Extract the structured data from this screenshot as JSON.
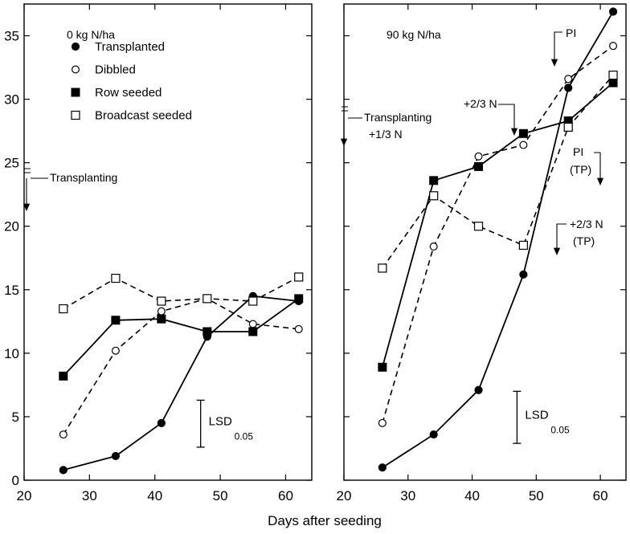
{
  "chart_data": {
    "type": "line",
    "xlabel": "Days after seeding",
    "x_ticks": [
      20,
      30,
      40,
      50,
      60
    ],
    "y_ticks": [
      0,
      5,
      10,
      15,
      20,
      25,
      30,
      35
    ],
    "xlim": [
      20,
      64
    ],
    "ylim": [
      0,
      37.5
    ],
    "legend": {
      "placement": "top-left of left panel",
      "entries": [
        {
          "name": "Transplanted",
          "marker": "filled-circle",
          "line": "solid"
        },
        {
          "name": "Dibbled",
          "marker": "open-circle",
          "line": "dashed"
        },
        {
          "name": "Row seeded",
          "marker": "filled-square",
          "line": "solid"
        },
        {
          "name": "Broadcast seeded",
          "marker": "open-square",
          "line": "dashed"
        }
      ]
    },
    "panels": [
      {
        "title": "0 kg N/ha",
        "series": [
          {
            "name": "Transplanted",
            "x": [
              26,
              34,
              41,
              48,
              55,
              62
            ],
            "y": [
              0.8,
              1.9,
              4.5,
              11.3,
              14.5,
              14.1
            ]
          },
          {
            "name": "Dibbled",
            "x": [
              26,
              34,
              41,
              48,
              55,
              62
            ],
            "y": [
              3.6,
              10.2,
              13.3,
              14.3,
              12.3,
              11.9
            ]
          },
          {
            "name": "Row seeded",
            "x": [
              26,
              34,
              41,
              48,
              55,
              62
            ],
            "y": [
              8.2,
              12.6,
              12.7,
              11.7,
              11.7,
              14.3
            ]
          },
          {
            "name": "Broadcast seeded",
            "x": [
              26,
              34,
              41,
              48,
              55,
              62
            ],
            "y": [
              13.5,
              15.9,
              14.1,
              14.3,
              14.1,
              16.0
            ]
          }
        ],
        "lsd": {
          "label": "LSD",
          "subscript": "0.05",
          "x": 47,
          "y_low": 2.6,
          "y_high": 6.3
        },
        "annotations": [
          {
            "text": "Transplanting",
            "x": 20,
            "y": 23.8
          }
        ]
      },
      {
        "title": "90 kg N/ha",
        "series": [
          {
            "name": "Transplanted",
            "x": [
              26,
              34,
              41,
              48,
              55,
              62
            ],
            "y": [
              1.0,
              3.6,
              7.1,
              16.2,
              30.9,
              36.9
            ]
          },
          {
            "name": "Dibbled",
            "x": [
              26,
              34,
              41,
              48,
              55,
              62
            ],
            "y": [
              4.5,
              18.4,
              25.5,
              26.4,
              31.6,
              34.2
            ]
          },
          {
            "name": "Row seeded",
            "x": [
              26,
              34,
              41,
              48,
              55,
              62
            ],
            "y": [
              8.9,
              23.6,
              24.7,
              27.3,
              28.3,
              31.3
            ]
          },
          {
            "name": "Broadcast seeded",
            "x": [
              26,
              34,
              41,
              48,
              55,
              62
            ],
            "y": [
              16.7,
              22.4,
              20.0,
              18.5,
              27.8,
              31.9
            ]
          }
        ],
        "lsd": {
          "label": "LSD",
          "subscript": "0.05",
          "x": 47,
          "y_low": 2.9,
          "y_high": 7.0
        },
        "annotations": [
          {
            "text": "Transplanting",
            "x": 20,
            "y": 28.6
          },
          {
            "text": "+1/3 N",
            "x": 20,
            "y": 27.0
          },
          {
            "text": "+2/3 N",
            "x": 47,
            "y": 29.7
          },
          {
            "text": "PI",
            "x": 53,
            "y": 35.8
          },
          {
            "text": "PI",
            "x": 56,
            "y": 25.8
          },
          {
            "text": "(TP)",
            "x": 56,
            "y": 24.4
          },
          {
            "text": "+2/3 N",
            "x": 56,
            "y": 20.1
          },
          {
            "text": "(TP)",
            "x": 56,
            "y": 18.7
          }
        ]
      }
    ]
  }
}
